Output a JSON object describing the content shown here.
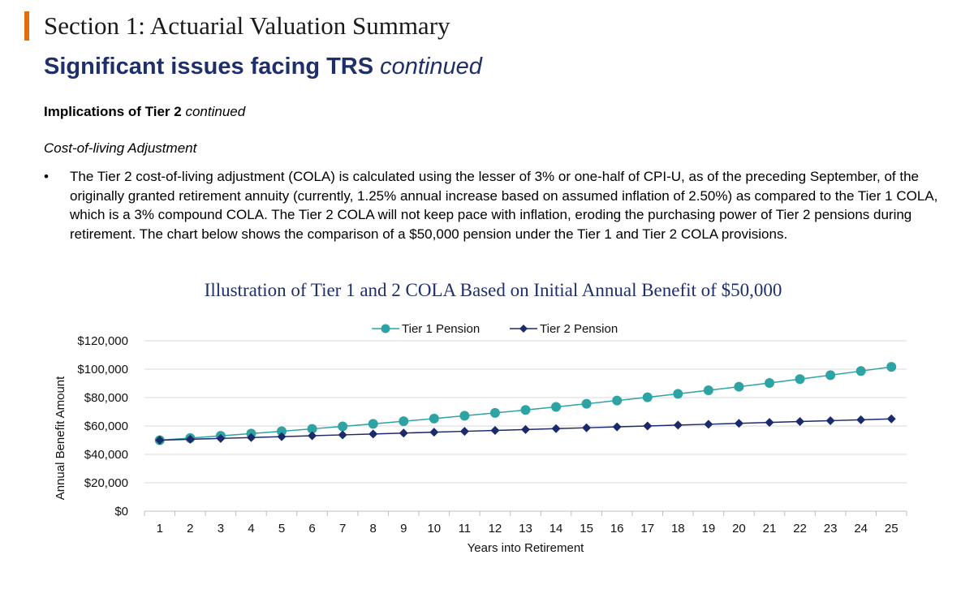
{
  "header": {
    "section_title": "Section 1: Actuarial Valuation Summary"
  },
  "title": {
    "main": "Significant issues facing TRS",
    "suffix": "continued"
  },
  "subheading": {
    "main": "Implications of Tier 2",
    "suffix": "continued"
  },
  "topic": "Cost-of-living Adjustment",
  "bullet": {
    "symbol": "•",
    "text": "The Tier 2 cost-of-living adjustment (COLA) is calculated using the lesser of 3% or one-half of CPI-U, as of the preceding September, of the originally granted retirement annuity (currently, 1.25% annual increase based on assumed inflation of 2.50%) as compared to the Tier 1 COLA, which is a 3% compound COLA. The Tier 2 COLA will not keep pace with inflation, eroding the purchasing power of Tier 2 pensions during retirement. The chart below shows the comparison of a $50,000 pension under the Tier 1 and Tier 2 COLA provisions."
  },
  "chart_data": {
    "type": "line",
    "title": "Illustration of Tier 1 and 2 COLA Based on Initial Annual Benefit of $50,000",
    "xlabel": "Years into Retirement",
    "ylabel": "Annual Benefit Amount",
    "ylim": [
      0,
      120000
    ],
    "yticks": [
      "$0",
      "$20,000",
      "$40,000",
      "$60,000",
      "$80,000",
      "$100,000",
      "$120,000"
    ],
    "ytick_values": [
      0,
      20000,
      40000,
      60000,
      80000,
      100000,
      120000
    ],
    "x": [
      1,
      2,
      3,
      4,
      5,
      6,
      7,
      8,
      9,
      10,
      11,
      12,
      13,
      14,
      15,
      16,
      17,
      18,
      19,
      20,
      21,
      22,
      23,
      24,
      25
    ],
    "grid": true,
    "legend_position": "top-center",
    "series": [
      {
        "name": "Tier 1 Pension",
        "color": "#2ea3a3",
        "marker": "circle",
        "values": [
          50000,
          51500,
          53045,
          54636,
          56275,
          57964,
          59703,
          61494,
          63339,
          65239,
          67196,
          69212,
          71288,
          73427,
          75629,
          77898,
          80235,
          82642,
          85122,
          87675,
          90306,
          93015,
          95805,
          98679,
          101640
        ]
      },
      {
        "name": "Tier 2 Pension",
        "color": "#1b2a6b",
        "marker": "diamond",
        "values": [
          50000,
          50625,
          51250,
          51875,
          52500,
          53125,
          53750,
          54375,
          55000,
          55625,
          56250,
          56875,
          57500,
          58125,
          58750,
          59375,
          60000,
          60625,
          61250,
          61875,
          62500,
          63125,
          63750,
          64375,
          65000
        ]
      }
    ]
  }
}
